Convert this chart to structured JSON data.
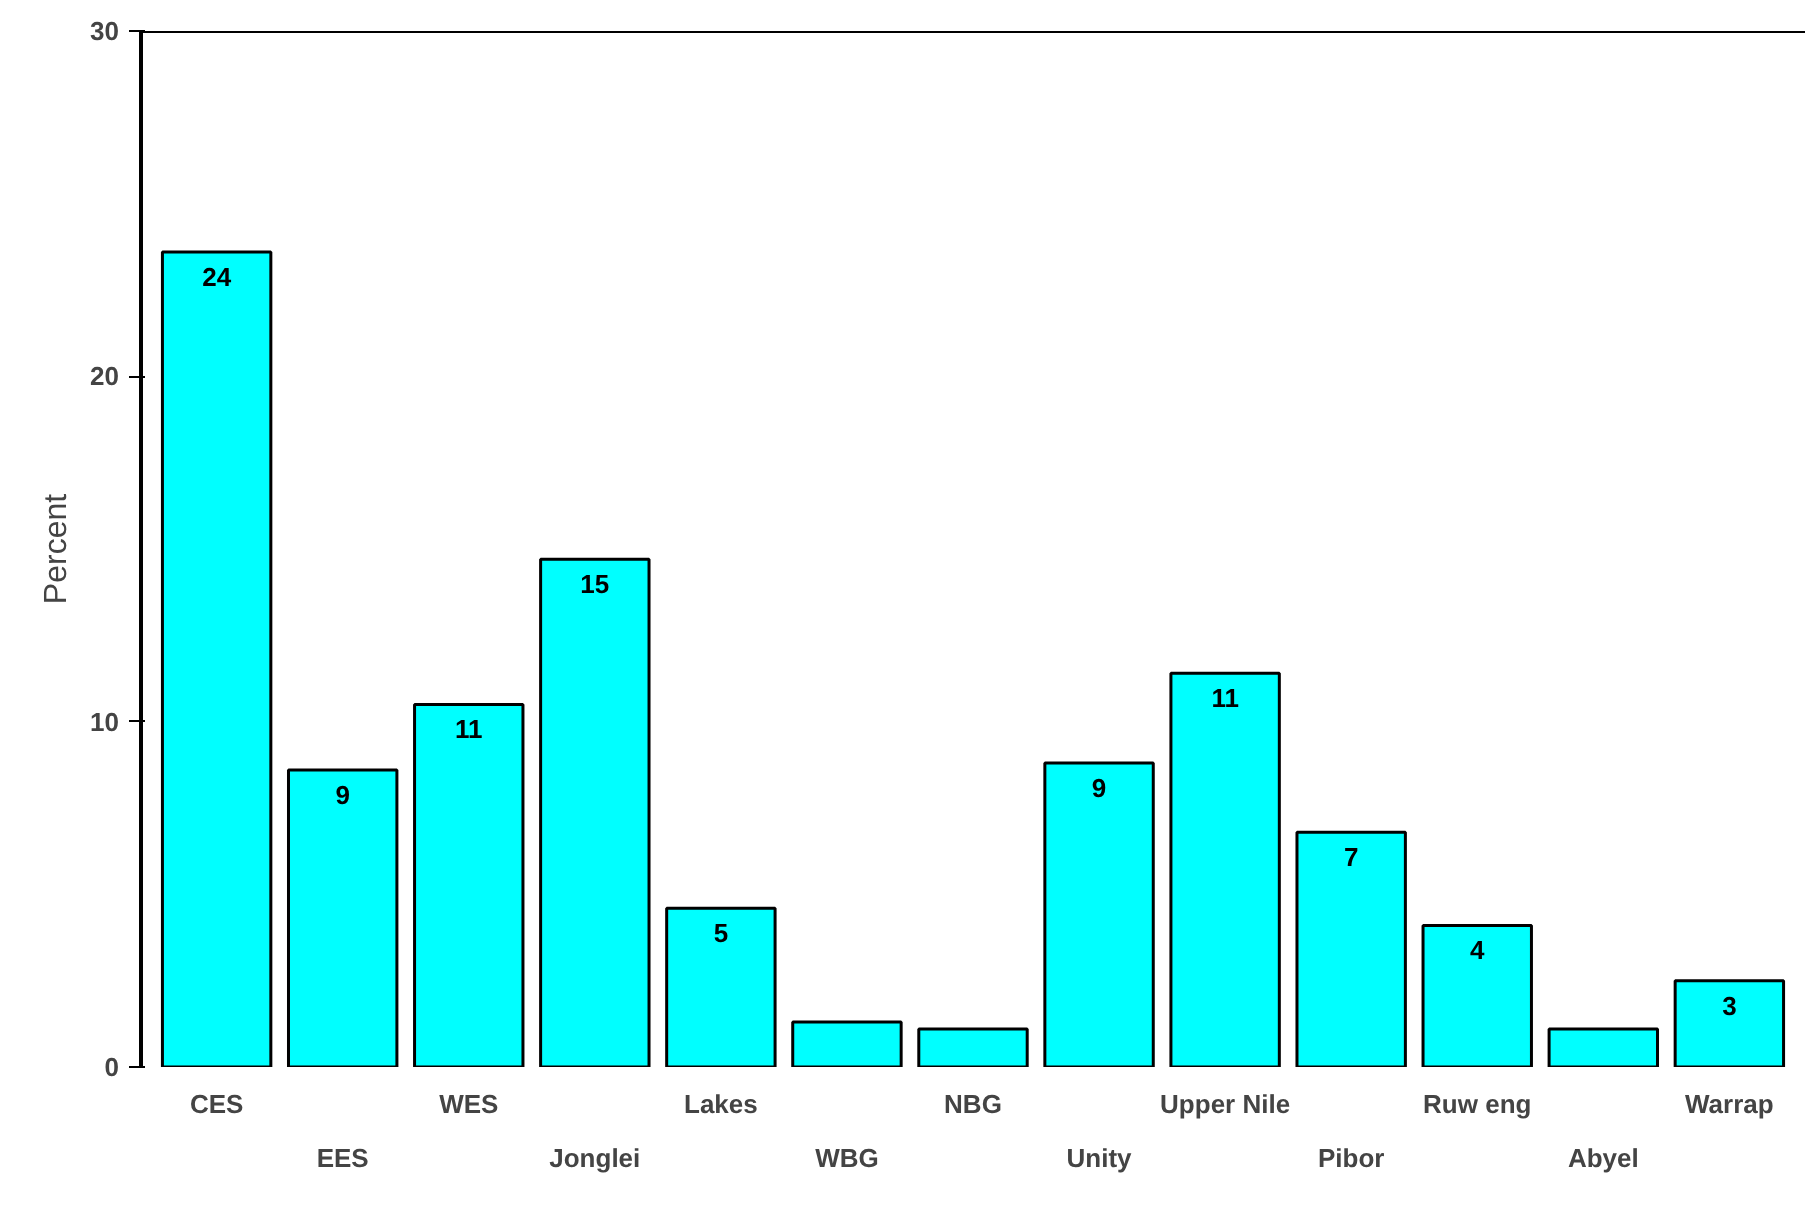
{
  "chart_data": {
    "type": "bar",
    "ylabel": "Percent",
    "categories": [
      "CES",
      "EES",
      "WES",
      "Jonglei",
      "Lakes",
      "WBG",
      "NBG",
      "Unity",
      "Upper Nile",
      "Pibor",
      "Ruw eng",
      "Abyel",
      "Warrap"
    ],
    "values": [
      23.6,
      8.6,
      10.5,
      14.7,
      4.6,
      1.3,
      1.1,
      8.8,
      11.4,
      6.8,
      4.1,
      1.1,
      2.5
    ],
    "value_labels": [
      "24",
      "9",
      "11",
      "15",
      "5",
      null,
      null,
      "9",
      "11",
      "7",
      "4",
      null,
      "3"
    ],
    "color": "#00ffff",
    "ylim": [
      0,
      30
    ],
    "yticks": [
      0,
      10,
      20,
      30
    ],
    "grid": false
  }
}
